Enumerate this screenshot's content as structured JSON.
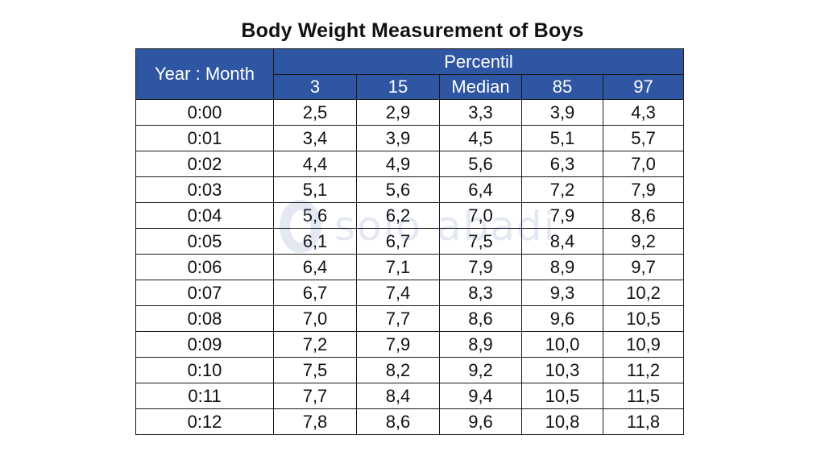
{
  "title": "Body Weight Measurement of Boys",
  "header": {
    "year_month": "Year : Month",
    "group": "Percentil",
    "columns": [
      "3",
      "15",
      "Median",
      "85",
      "97"
    ]
  },
  "rows": [
    [
      "0:00",
      "2,5",
      "2,9",
      "3,3",
      "3,9",
      "4,3"
    ],
    [
      "0:01",
      "3,4",
      "3,9",
      "4,5",
      "5,1",
      "5,7"
    ],
    [
      "0:02",
      "4,4",
      "4,9",
      "5,6",
      "6,3",
      "7,0"
    ],
    [
      "0:03",
      "5,1",
      "5,6",
      "6,4",
      "7,2",
      "7,9"
    ],
    [
      "0:04",
      "5,6",
      "6,2",
      "7,0",
      "7,9",
      "8,6"
    ],
    [
      "0:05",
      "6,1",
      "6,7",
      "7,5",
      "8,4",
      "9,2"
    ],
    [
      "0:06",
      "6,4",
      "7,1",
      "7,9",
      "8,9",
      "9,7"
    ],
    [
      "0:07",
      "6,7",
      "7,4",
      "8,3",
      "9,3",
      "10,2"
    ],
    [
      "0:08",
      "7,0",
      "7,7",
      "8,6",
      "9,6",
      "10,5"
    ],
    [
      "0:09",
      "7,2",
      "7,9",
      "8,9",
      "10,0",
      "10,9"
    ],
    [
      "0:10",
      "7,5",
      "8,2",
      "9,2",
      "10,3",
      "11,2"
    ],
    [
      "0:11",
      "7,7",
      "8,4",
      "9,4",
      "10,5",
      "11,5"
    ],
    [
      "0:12",
      "7,8",
      "8,6",
      "9,6",
      "10,8",
      "11,8"
    ]
  ],
  "watermark": {
    "text": "solo abadi",
    "icon": "logo-icon"
  },
  "colors": {
    "header_bg": "#2f56a3",
    "header_text": "#ffffff",
    "border": "#1a1a1a"
  }
}
